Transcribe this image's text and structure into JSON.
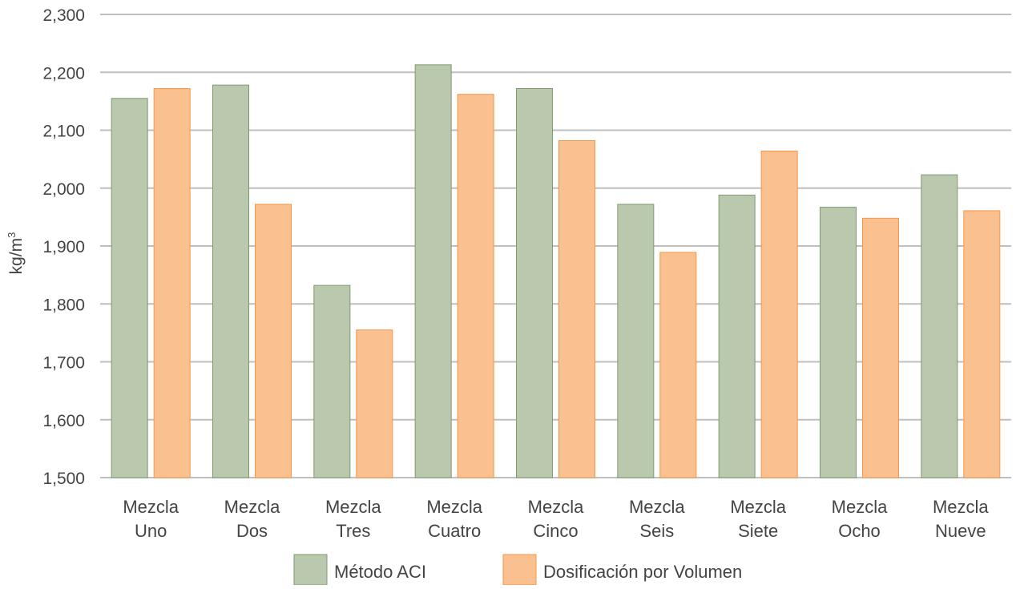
{
  "chart_data": {
    "type": "bar",
    "title": "",
    "xlabel": "",
    "ylabel": "kg/m",
    "ylabel_superscript": "3",
    "ylim": [
      1500,
      2300
    ],
    "yticks": [
      1500,
      1600,
      1700,
      1800,
      1900,
      2000,
      2100,
      2200,
      2300
    ],
    "ytick_labels": [
      "1,500",
      "1,600",
      "1,700",
      "1,800",
      "1,900",
      "2,000",
      "2,100",
      "2,200",
      "2,300"
    ],
    "grid": "horizontal",
    "legend_position": "bottom",
    "categories": [
      [
        "Mezcla",
        "Uno"
      ],
      [
        "Mezcla",
        "Dos"
      ],
      [
        "Mezcla",
        "Tres"
      ],
      [
        "Mezcla",
        "Cuatro"
      ],
      [
        "Mezcla",
        "Cinco"
      ],
      [
        "Mezcla",
        "Seis"
      ],
      [
        "Mezcla",
        "Siete"
      ],
      [
        "Mezcla",
        "Ocho"
      ],
      [
        "Mezcla",
        "Nueve"
      ]
    ],
    "series": [
      {
        "name": "Método ACI",
        "color": "#bac8ae",
        "stroke": "#7f9a6f",
        "values": [
          2155,
          2178,
          1832,
          2213,
          2172,
          1972,
          1988,
          1967,
          2023
        ]
      },
      {
        "name": "Dosificación por Volumen",
        "color": "#fac090",
        "stroke": "#f79646",
        "values": [
          2172,
          1972,
          1755,
          2162,
          2082,
          1889,
          2064,
          1948,
          1961
        ]
      }
    ]
  }
}
